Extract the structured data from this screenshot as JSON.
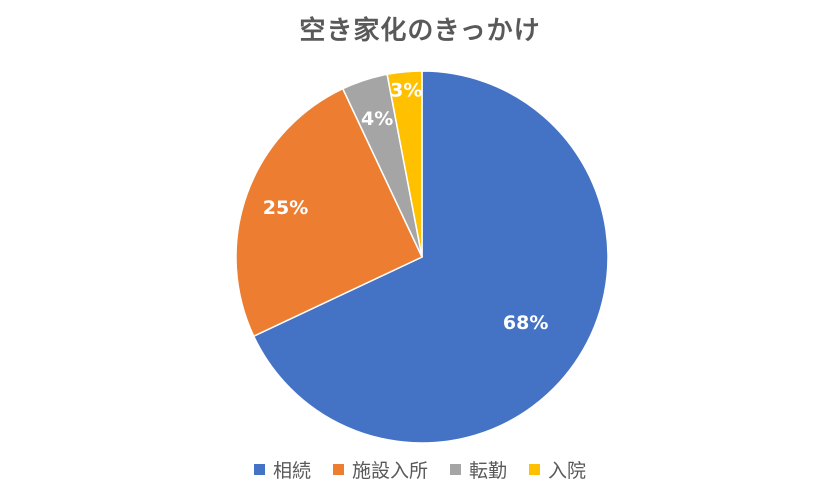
{
  "chart_data": {
    "type": "pie",
    "title": "空き家化のきっかけ",
    "slices": [
      {
        "name": "相続",
        "value": 68,
        "label": "68%",
        "color": "#4472C4",
        "label_color": "#ffffff"
      },
      {
        "name": "施設入所",
        "value": 25,
        "label": "25%",
        "color": "#ED7D31",
        "label_color": "#ffffff"
      },
      {
        "name": "転勤",
        "value": 4,
        "label": "4%",
        "color": "#A5A5A5",
        "label_color": "#ffffff"
      },
      {
        "name": "入院",
        "value": 3,
        "label": "3%",
        "color": "#FFC000",
        "label_color": "#ffffff"
      }
    ],
    "legend_position": "bottom",
    "start_angle": "12 o'clock",
    "direction": "clockwise"
  }
}
